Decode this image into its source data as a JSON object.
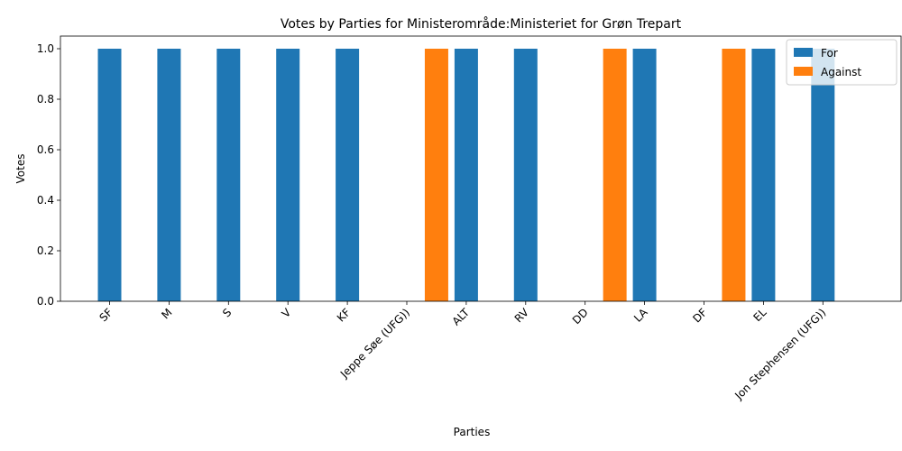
{
  "chart_data": {
    "type": "bar",
    "title": "Votes by Parties for Ministerområde:Ministeriet for Grøn Trepart",
    "xlabel": "Parties",
    "ylabel": "Votes",
    "categories": [
      "SF",
      "M",
      "S",
      "V",
      "KF",
      "Jeppe Søe (UFG))",
      "ALT",
      "RV",
      "DD",
      "LA",
      "DF",
      "EL",
      "Jon Stephensen (UFG))"
    ],
    "series": [
      {
        "name": "For",
        "color": "#1f77b4",
        "values": [
          1,
          1,
          1,
          1,
          1,
          0,
          1,
          1,
          0,
          1,
          0,
          1,
          1
        ]
      },
      {
        "name": "Against",
        "color": "#ff7f0e",
        "values": [
          0,
          0,
          0,
          0,
          0,
          1,
          0,
          0,
          1,
          0,
          1,
          0,
          0
        ]
      }
    ],
    "ylim": [
      0,
      1.05
    ],
    "yticks": [
      0.0,
      0.2,
      0.4,
      0.6,
      0.8,
      1.0
    ],
    "ytick_labels": [
      "0.0",
      "0.2",
      "0.4",
      "0.6",
      "0.8",
      "1.0"
    ],
    "grid": false,
    "legend_position": "top-right"
  }
}
